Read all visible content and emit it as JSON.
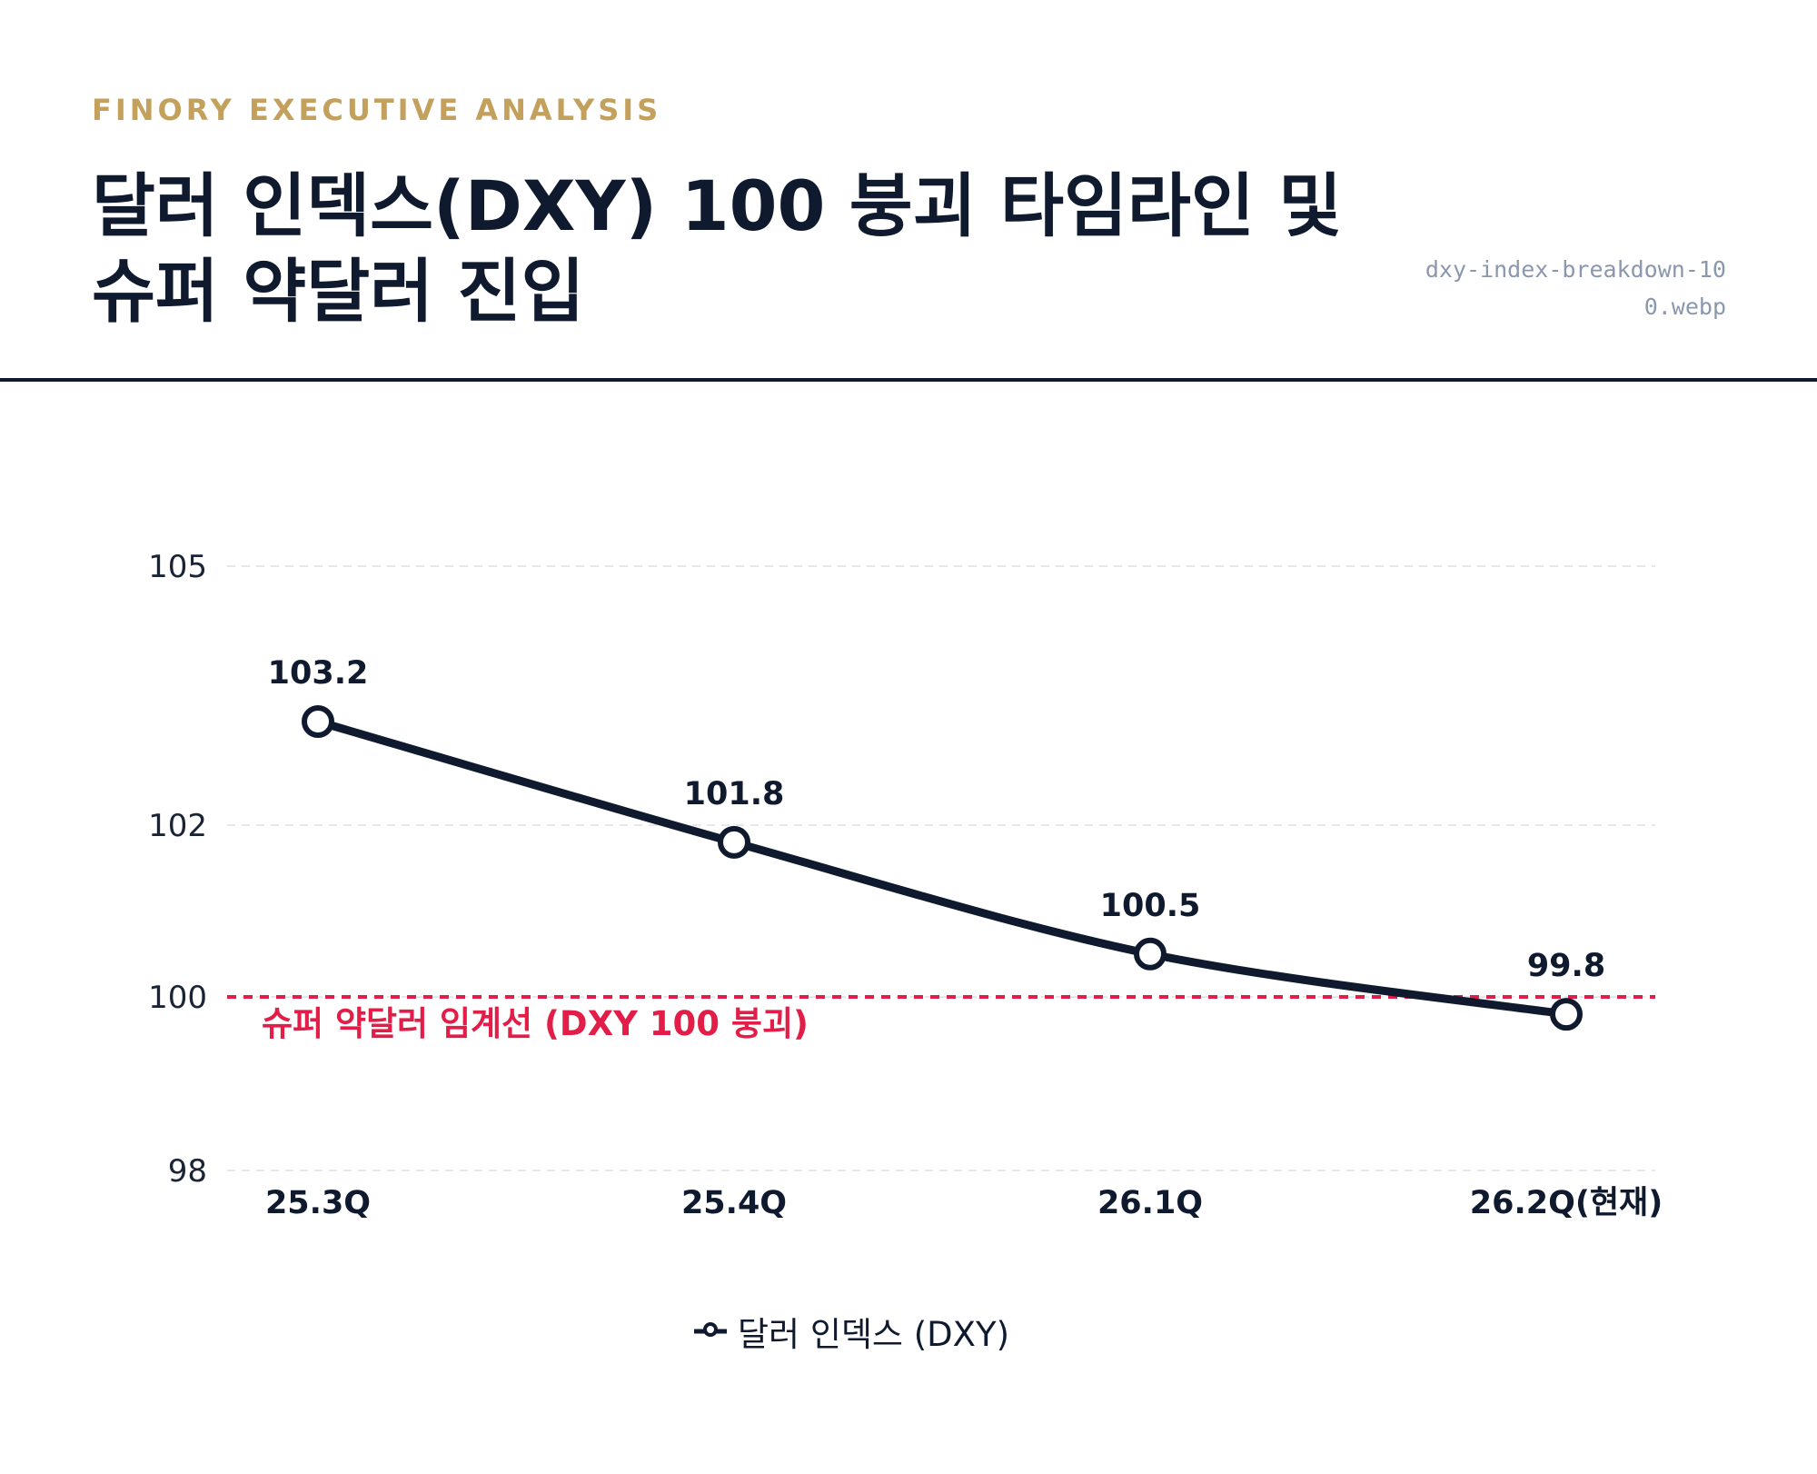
{
  "header": {
    "kicker": "FINORY EXECUTIVE ANALYSIS",
    "title_line1": "달러 인덱스(DXY) 100 붕괴 타임라인 및",
    "title_line2": "슈퍼 약달러 진입",
    "filename": "dxy-index-breakdown-100.webp"
  },
  "chart_data": {
    "type": "line",
    "categories": [
      "25.3Q",
      "25.4Q",
      "26.1Q",
      "26.2Q(현재)"
    ],
    "series": [
      {
        "name": "달러 인덱스 (DXY)",
        "values": [
          103.2,
          101.8,
          100.5,
          99.8
        ],
        "color": "#0f1a2e"
      }
    ],
    "data_labels": [
      "103.2",
      "101.8",
      "100.5",
      "99.8"
    ],
    "y_ticks": [
      "98",
      "100",
      "102",
      "105"
    ],
    "y_tick_values": [
      98,
      100,
      102,
      105
    ],
    "ylim": [
      98,
      105
    ],
    "grid": true,
    "reference_line": {
      "value": 100,
      "label": "슈퍼 약달러 임계선 (DXY 100 붕괴)",
      "color": "#e11d48"
    },
    "legend_position": "bottom-center"
  }
}
